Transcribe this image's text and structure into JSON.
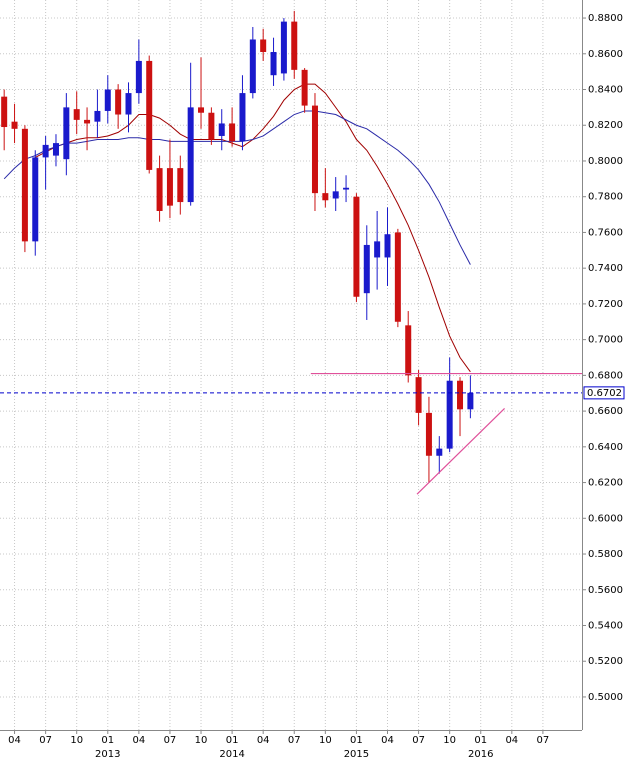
{
  "chart_data": {
    "type": "candlestick",
    "categories": [
      null,
      "04",
      null,
      null,
      "07",
      null,
      null,
      "10",
      null,
      null,
      "01",
      null,
      null,
      "04",
      null,
      null,
      "07",
      null,
      null,
      "10",
      null,
      null,
      "01",
      null,
      null,
      "04",
      null,
      null,
      "07",
      null,
      null,
      "10",
      null,
      null,
      "01",
      null,
      null,
      "04",
      null,
      null,
      "07",
      null,
      null,
      "10",
      null,
      null,
      "01",
      null,
      null,
      "04",
      null,
      null,
      "07",
      null,
      null,
      null
    ],
    "category_groups": [
      {
        "label": "2013",
        "start": 10
      },
      {
        "label": "2014",
        "start": 22
      },
      {
        "label": "2015",
        "start": 34
      },
      {
        "label": "2016",
        "start": 46
      }
    ],
    "ohlc": {
      "open": [
        0.836,
        0.822,
        0.818,
        0.755,
        0.802,
        0.803,
        0.801,
        0.829,
        0.823,
        0.822,
        0.828,
        0.84,
        0.826,
        0.838,
        0.856,
        0.796,
        0.796,
        0.796,
        0.777,
        0.83,
        0.827,
        0.814,
        0.821,
        0.811,
        0.838,
        0.868,
        0.848,
        0.849,
        0.878,
        0.851,
        0.831,
        0.782,
        0.779,
        0.784,
        0.78,
        0.726,
        0.746,
        0.746,
        0.76,
        0.708,
        0.679,
        0.659,
        0.635,
        0.639,
        0.677,
        0.661,
        null,
        null,
        null,
        null,
        null,
        null,
        null,
        null,
        null,
        null
      ],
      "high": [
        0.84,
        0.832,
        0.82,
        0.806,
        0.814,
        0.815,
        0.838,
        0.839,
        0.83,
        0.84,
        0.848,
        0.843,
        0.844,
        0.868,
        0.859,
        0.803,
        0.812,
        0.803,
        0.855,
        0.858,
        0.83,
        0.829,
        0.83,
        0.848,
        0.875,
        0.874,
        0.869,
        0.88,
        0.884,
        0.852,
        0.838,
        0.796,
        0.791,
        0.792,
        0.782,
        0.764,
        0.772,
        0.774,
        0.762,
        0.716,
        0.683,
        0.668,
        0.646,
        0.69,
        0.679,
        0.68,
        null,
        null,
        null,
        null,
        null,
        null,
        null,
        null,
        null,
        null
      ],
      "low": [
        0.806,
        0.81,
        0.749,
        0.747,
        0.784,
        0.797,
        0.792,
        0.815,
        0.806,
        0.813,
        0.821,
        0.818,
        0.816,
        0.832,
        0.793,
        0.766,
        0.768,
        0.77,
        0.775,
        0.818,
        0.809,
        0.806,
        0.808,
        0.806,
        0.835,
        0.856,
        0.842,
        0.845,
        0.846,
        0.827,
        0.772,
        0.774,
        0.772,
        0.777,
        0.721,
        0.711,
        0.728,
        0.73,
        0.707,
        0.676,
        0.652,
        0.62,
        0.625,
        0.637,
        0.646,
        0.656,
        null,
        null,
        null,
        null,
        null,
        null,
        null,
        null,
        null,
        null
      ],
      "close": [
        0.819,
        0.818,
        0.755,
        0.802,
        0.809,
        0.81,
        0.83,
        0.823,
        0.821,
        0.828,
        0.84,
        0.826,
        0.838,
        0.856,
        0.795,
        0.772,
        0.775,
        0.777,
        0.83,
        0.827,
        0.812,
        0.821,
        0.811,
        0.838,
        0.868,
        0.861,
        0.861,
        0.878,
        0.851,
        0.831,
        0.782,
        0.778,
        0.783,
        0.785,
        0.724,
        0.753,
        0.755,
        0.759,
        0.71,
        0.68,
        0.659,
        0.635,
        0.639,
        0.677,
        0.661,
        0.6702,
        null,
        null,
        null,
        null,
        null,
        null,
        null,
        null,
        null,
        null
      ]
    },
    "up_color": "#1a1acc",
    "down_color": "#cc1111",
    "lines": [
      {
        "color": "#a00000",
        "values": [
          null,
          null,
          null,
          0.802,
          0.805,
          0.808,
          0.81,
          0.812,
          0.813,
          0.813,
          0.814,
          0.816,
          0.82,
          0.826,
          0.826,
          0.824,
          0.82,
          0.815,
          0.812,
          0.812,
          0.812,
          0.812,
          0.81,
          0.808,
          0.812,
          0.818,
          0.825,
          0.834,
          0.84,
          0.843,
          0.843,
          0.838,
          0.83,
          0.822,
          0.812,
          0.806,
          0.797,
          0.787,
          0.776,
          0.764,
          0.75,
          0.735,
          0.718,
          0.702,
          0.69,
          0.682,
          null,
          null,
          null,
          null,
          null,
          null,
          null,
          null,
          null,
          null
        ]
      },
      {
        "color": "#2a2aa8",
        "values": [
          0.79,
          0.796,
          0.801,
          0.803,
          0.806,
          0.808,
          0.81,
          0.81,
          0.811,
          0.812,
          0.812,
          0.812,
          0.813,
          0.813,
          0.812,
          0.812,
          0.811,
          0.811,
          0.811,
          0.811,
          0.811,
          0.811,
          0.811,
          0.811,
          0.812,
          0.814,
          0.818,
          0.822,
          0.826,
          0.828,
          0.828,
          0.827,
          0.826,
          0.823,
          0.82,
          0.818,
          0.814,
          0.81,
          0.806,
          0.801,
          0.795,
          0.787,
          0.777,
          0.765,
          0.753,
          0.742,
          null,
          null,
          null,
          null,
          null,
          null,
          null,
          null,
          null,
          null
        ]
      }
    ],
    "last_price": {
      "value": 0.6702,
      "color": "#0000cc"
    },
    "annotations": [
      {
        "kind": "hline",
        "value": 0.681,
        "x_from": 29.6,
        "color": "#e0509a"
      },
      {
        "kind": "segment",
        "points": [
          [
            39.85,
            0.6135
          ],
          [
            48.3,
            0.6615
          ]
        ],
        "color": "#e0509a"
      }
    ],
    "ylim": [
      0.4815,
      0.8901
    ],
    "yticks": [
      {
        "value": 0.5,
        "label": "0.5000"
      },
      {
        "value": 0.52,
        "label": "0.5200"
      },
      {
        "value": 0.54,
        "label": "0.5400"
      },
      {
        "value": 0.56,
        "label": "0.5600"
      },
      {
        "value": 0.58,
        "label": "0.5800"
      },
      {
        "value": 0.6,
        "label": "0.6000"
      },
      {
        "value": 0.62,
        "label": "0.6200"
      },
      {
        "value": 0.64,
        "label": "0.6400"
      },
      {
        "value": 0.66,
        "label": "0.6600"
      },
      {
        "value": 0.68,
        "label": "0.6800"
      },
      {
        "value": 0.7,
        "label": "0.7000"
      },
      {
        "value": 0.72,
        "label": "0.7200"
      },
      {
        "value": 0.74,
        "label": "0.7400"
      },
      {
        "value": 0.76,
        "label": "0.7600"
      },
      {
        "value": 0.78,
        "label": "0.7800"
      },
      {
        "value": 0.8,
        "label": "0.8000"
      },
      {
        "value": 0.82,
        "label": "0.8200"
      },
      {
        "value": 0.84,
        "label": "0.8400"
      },
      {
        "value": 0.86,
        "label": "0.8600"
      },
      {
        "value": 0.88,
        "label": "0.8800"
      }
    ],
    "grid": true
  }
}
